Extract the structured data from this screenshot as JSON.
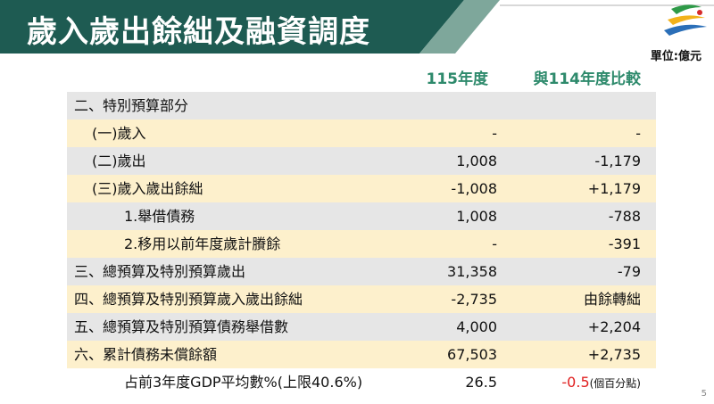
{
  "header": {
    "title": "歲入歲出餘絀及融資調度",
    "unit": "單位:億元"
  },
  "table": {
    "columns": [
      "115年度",
      "與114年度比較"
    ],
    "rows": [
      {
        "label": "二、特別預算部分",
        "level": 0
      },
      {
        "label": "(一)歲入",
        "amount": "-",
        "change": "-",
        "level": 1
      },
      {
        "label": "(二)歲出",
        "amount": "1,008",
        "change": "-1,179",
        "level": 1
      },
      {
        "label": "(三)歲入歲出餘絀",
        "amount": "-1,008",
        "change": "+1,179",
        "level": 1
      },
      {
        "label": "1.舉借債務",
        "amount": "1,008",
        "change": "-788",
        "level": 2
      },
      {
        "label": "2.移用以前年度歲計賸餘",
        "amount": "-",
        "change": "-391",
        "level": 2
      },
      {
        "label": "三、總預算及特別預算歲出",
        "amount": "31,358",
        "change": "-79",
        "level": 0
      },
      {
        "label": "四、總預算及特別預算歲入歲出餘絀",
        "amount": "-2,735",
        "change": "由餘轉絀",
        "level": 0
      },
      {
        "label": "五、總預算及特別預算債務舉借數",
        "amount": "4,000",
        "change": "+2,204",
        "level": 0
      },
      {
        "label": "六、累計債務未償餘額",
        "amount": "67,503",
        "change": "+2,735",
        "level": 0
      },
      {
        "label": "占前3年度GDP平均數%(上限40.6%)",
        "amount": "26.5",
        "change": "-0.5",
        "change_note": "(個百分點)",
        "level": 2
      }
    ]
  },
  "footer": {
    "page": "5"
  }
}
